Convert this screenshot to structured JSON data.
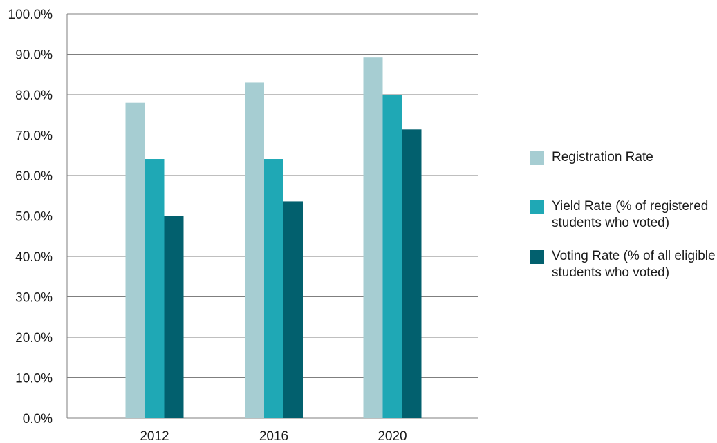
{
  "chart_data": {
    "type": "bar",
    "categories": [
      "2012",
      "2016",
      "2020"
    ],
    "series": [
      {
        "name": "Registration Rate",
        "values": [
          78.0,
          83.0,
          89.2
        ],
        "color": "#a6cdd2"
      },
      {
        "name": "Yield Rate (% of registered students who voted)",
        "values": [
          64.1,
          64.1,
          80.0
        ],
        "color": "#1fa8b5"
      },
      {
        "name": "Voting Rate (% of all eligible students who voted)",
        "values": [
          50.0,
          53.6,
          71.4
        ],
        "color": "#02606e"
      }
    ],
    "ylim": [
      0,
      100
    ],
    "yticks": [
      "0.0%",
      "10.0%",
      "20.0%",
      "30.0%",
      "40.0%",
      "50.0%",
      "60.0%",
      "70.0%",
      "80.0%",
      "90.0%",
      "100.0%"
    ],
    "grid": true,
    "legend_position": "right",
    "title": "",
    "xlabel": "",
    "ylabel": "",
    "gridline_color": "#7f7f7f"
  }
}
